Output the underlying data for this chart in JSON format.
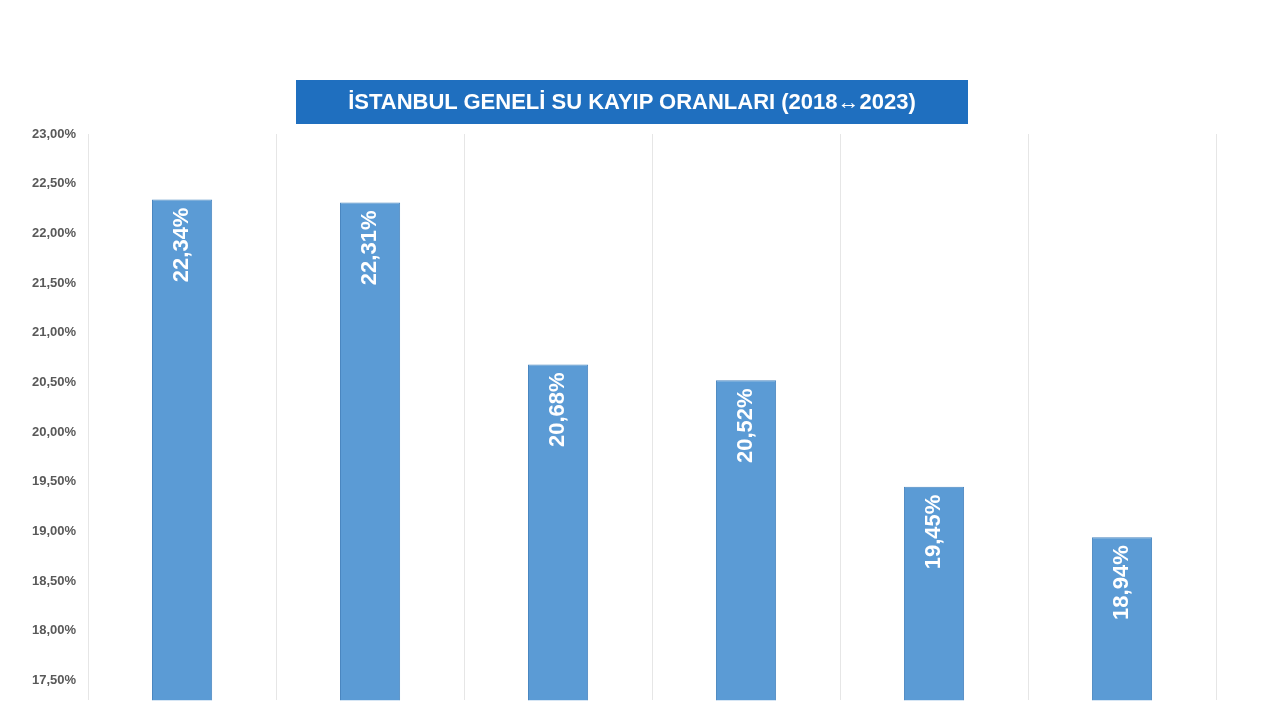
{
  "chart_data": {
    "type": "bar",
    "title": "İSTANBUL GENELİ SU KAYIP ORANLARI (2018↔2023)",
    "categories": [
      null,
      null,
      null,
      null,
      null,
      null
    ],
    "values": [
      22.34,
      22.31,
      20.68,
      20.52,
      19.45,
      18.94
    ],
    "value_labels": [
      "22,34%",
      "22,31%",
      "20,68%",
      "20,52%",
      "19,45%",
      "18,94%"
    ],
    "color": "#5b9bd5",
    "ylim": [
      17.3,
      23
    ],
    "yticks": [
      {
        "value": 17.5,
        "label": "17,50%"
      },
      {
        "value": 18,
        "label": "18,00%"
      },
      {
        "value": 18.5,
        "label": "18,50%"
      },
      {
        "value": 19,
        "label": "19,00%"
      },
      {
        "value": 19.5,
        "label": "19,50%"
      },
      {
        "value": 20,
        "label": "20,00%"
      },
      {
        "value": 20.5,
        "label": "20,50%"
      },
      {
        "value": 21,
        "label": "21,00%"
      },
      {
        "value": 21.5,
        "label": "21,50%"
      },
      {
        "value": 22,
        "label": "22,00%"
      },
      {
        "value": 22.5,
        "label": "22,50%"
      },
      {
        "value": 23,
        "label": "23,00%"
      }
    ],
    "grid": "x",
    "legend": false
  }
}
